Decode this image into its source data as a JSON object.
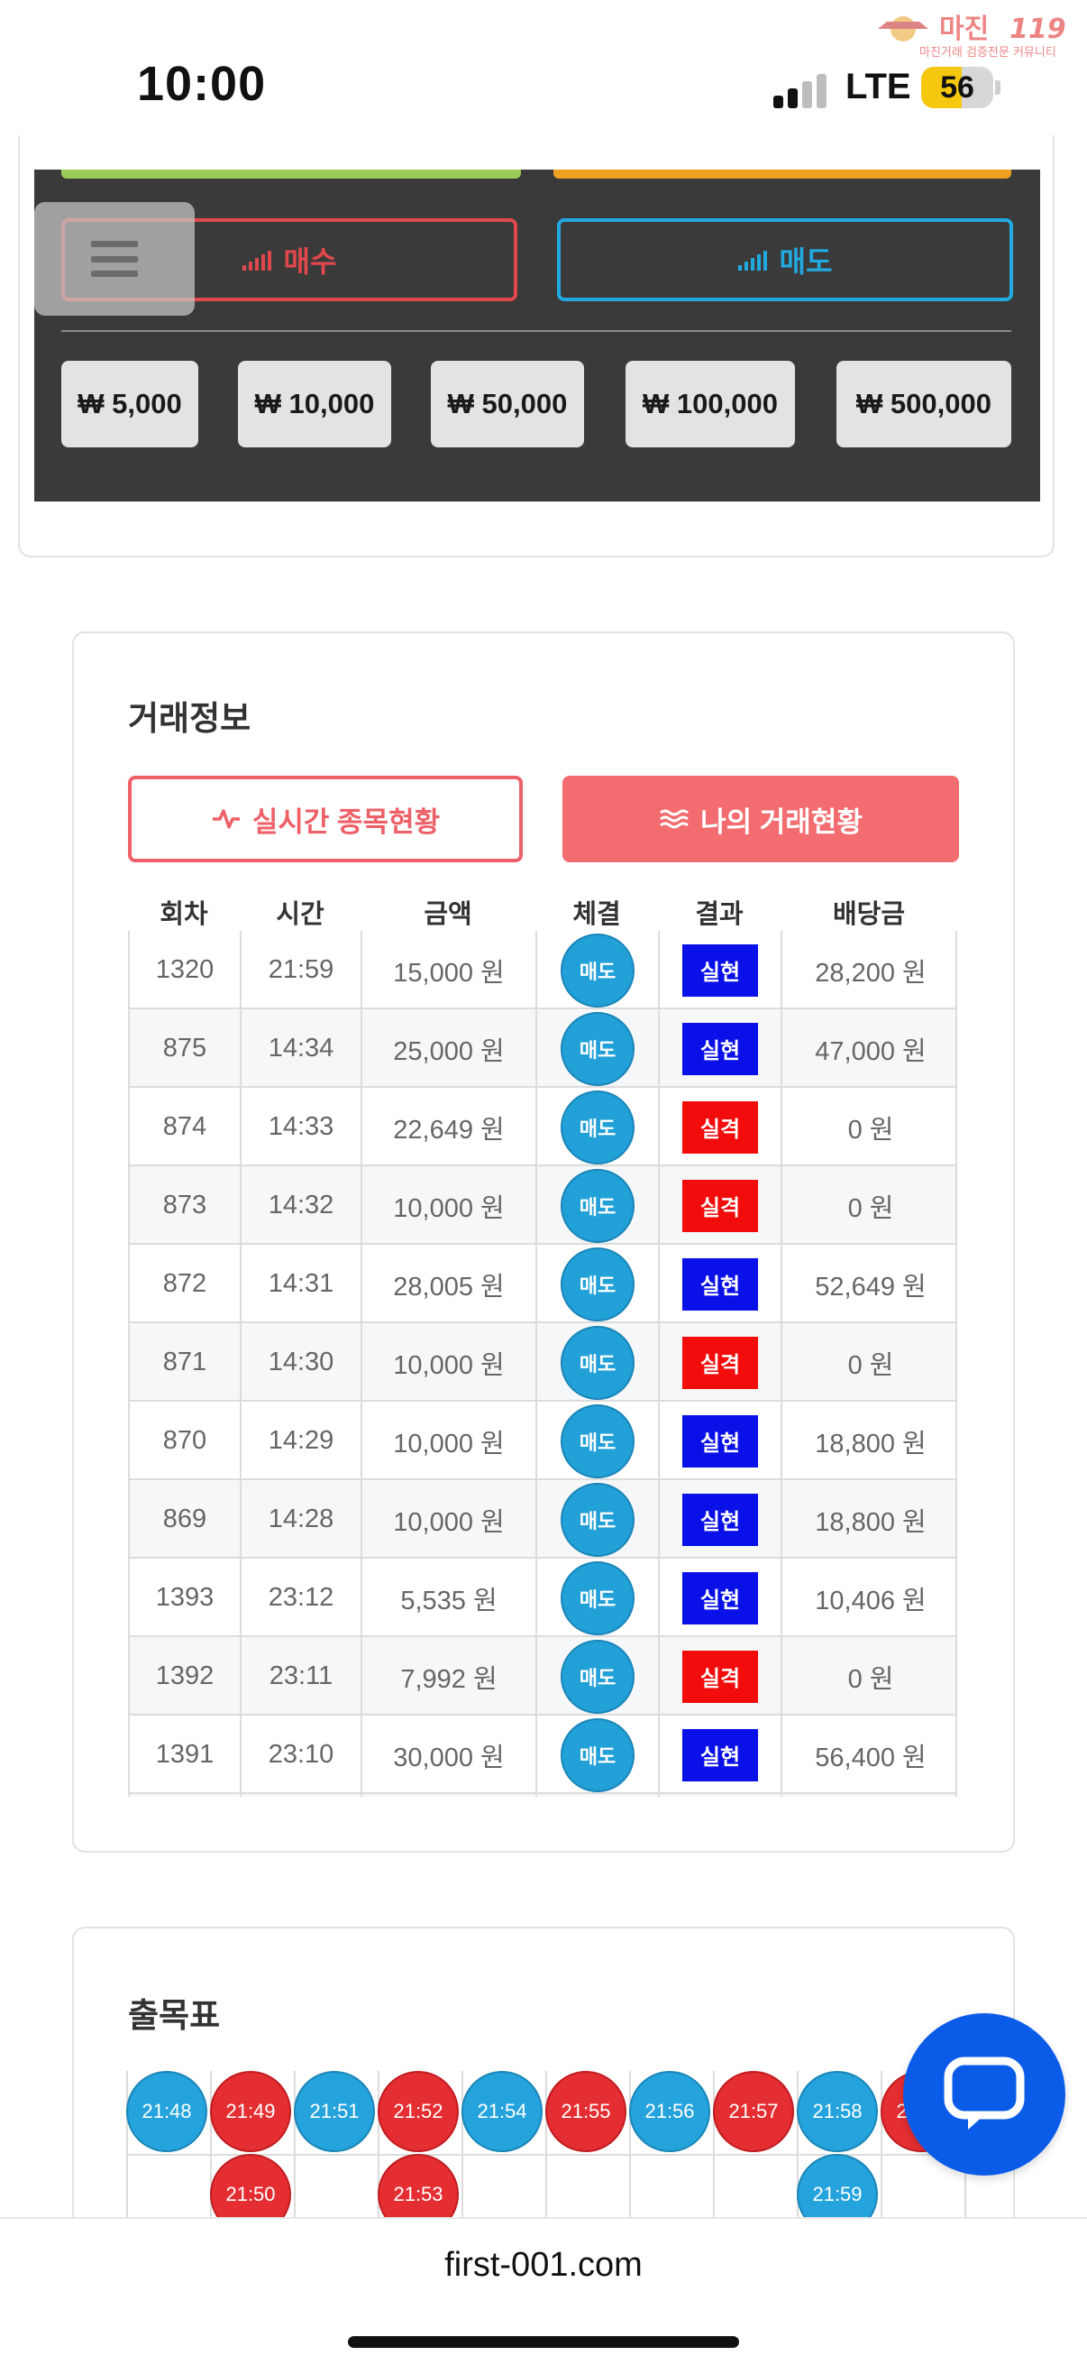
{
  "status_bar": {
    "time": "10:00",
    "network": "LTE",
    "battery": "56",
    "battery_level": 0.56
  },
  "watermark": {
    "brand": "마진",
    "number": "119",
    "tagline": "마진거래 검증전문 커뮤니티"
  },
  "trade_panel": {
    "buy_label": "매수",
    "sell_label": "매도",
    "amounts": [
      "₩ 5,000",
      "₩ 10,000",
      "₩ 50,000",
      "₩ 100,000",
      "₩ 500,000"
    ],
    "colors": {
      "buy": "#e0484c",
      "sell": "#22a9df",
      "green_bar": "#9ccc58",
      "orange_bar": "#f0a020"
    }
  },
  "trade_info": {
    "title": "거래정보",
    "tab_realtime": "실시간 종목현황",
    "tab_mine": "나의 거래현황",
    "columns": [
      "회차",
      "시간",
      "금액",
      "체결",
      "결과",
      "배당금"
    ],
    "rows": [
      {
        "round": "1320",
        "time": "21:59",
        "amount": "15,000 원",
        "exec": "매도",
        "result": "실현",
        "payout": "28,200 원"
      },
      {
        "round": "875",
        "time": "14:34",
        "amount": "25,000 원",
        "exec": "매도",
        "result": "실현",
        "payout": "47,000 원"
      },
      {
        "round": "874",
        "time": "14:33",
        "amount": "22,649 원",
        "exec": "매도",
        "result": "실격",
        "payout": "0 원"
      },
      {
        "round": "873",
        "time": "14:32",
        "amount": "10,000 원",
        "exec": "매도",
        "result": "실격",
        "payout": "0 원"
      },
      {
        "round": "872",
        "time": "14:31",
        "amount": "28,005 원",
        "exec": "매도",
        "result": "실현",
        "payout": "52,649 원"
      },
      {
        "round": "871",
        "time": "14:30",
        "amount": "10,000 원",
        "exec": "매도",
        "result": "실격",
        "payout": "0 원"
      },
      {
        "round": "870",
        "time": "14:29",
        "amount": "10,000 원",
        "exec": "매도",
        "result": "실현",
        "payout": "18,800 원"
      },
      {
        "round": "869",
        "time": "14:28",
        "amount": "10,000 원",
        "exec": "매도",
        "result": "실현",
        "payout": "18,800 원"
      },
      {
        "round": "1393",
        "time": "23:12",
        "amount": "5,535 원",
        "exec": "매도",
        "result": "실현",
        "payout": "10,406 원"
      },
      {
        "round": "1392",
        "time": "23:11",
        "amount": "7,992 원",
        "exec": "매도",
        "result": "실격",
        "payout": "0 원"
      },
      {
        "round": "1391",
        "time": "23:10",
        "amount": "30,000 원",
        "exec": "매도",
        "result": "실현",
        "payout": "56,400 원"
      },
      {
        "round": "",
        "time": "",
        "amount": "",
        "exec": "",
        "result": "",
        "payout": ""
      }
    ]
  },
  "result_chart": {
    "title": "출목표",
    "columns": [
      {
        "items": [
          {
            "time": "21:48",
            "color": "blue"
          }
        ]
      },
      {
        "items": [
          {
            "time": "21:49",
            "color": "red"
          },
          {
            "time": "21:50",
            "color": "red"
          }
        ]
      },
      {
        "items": [
          {
            "time": "21:51",
            "color": "blue"
          }
        ]
      },
      {
        "items": [
          {
            "time": "21:52",
            "color": "red"
          },
          {
            "time": "21:53",
            "color": "red"
          }
        ]
      },
      {
        "items": [
          {
            "time": "21:54",
            "color": "blue"
          }
        ]
      },
      {
        "items": [
          {
            "time": "21:55",
            "color": "red"
          }
        ]
      },
      {
        "items": [
          {
            "time": "21:56",
            "color": "blue"
          }
        ]
      },
      {
        "items": [
          {
            "time": "21:57",
            "color": "red"
          }
        ]
      },
      {
        "items": [
          {
            "time": "21:58",
            "color": "blue"
          },
          {
            "time": "21:59",
            "color": "blue"
          }
        ]
      },
      {
        "items": [
          {
            "time": "22:00",
            "color": "red"
          }
        ]
      }
    ]
  },
  "chat": {
    "icon": "chat-bubble-icon"
  },
  "url_bar": {
    "url": "first-001.com"
  }
}
